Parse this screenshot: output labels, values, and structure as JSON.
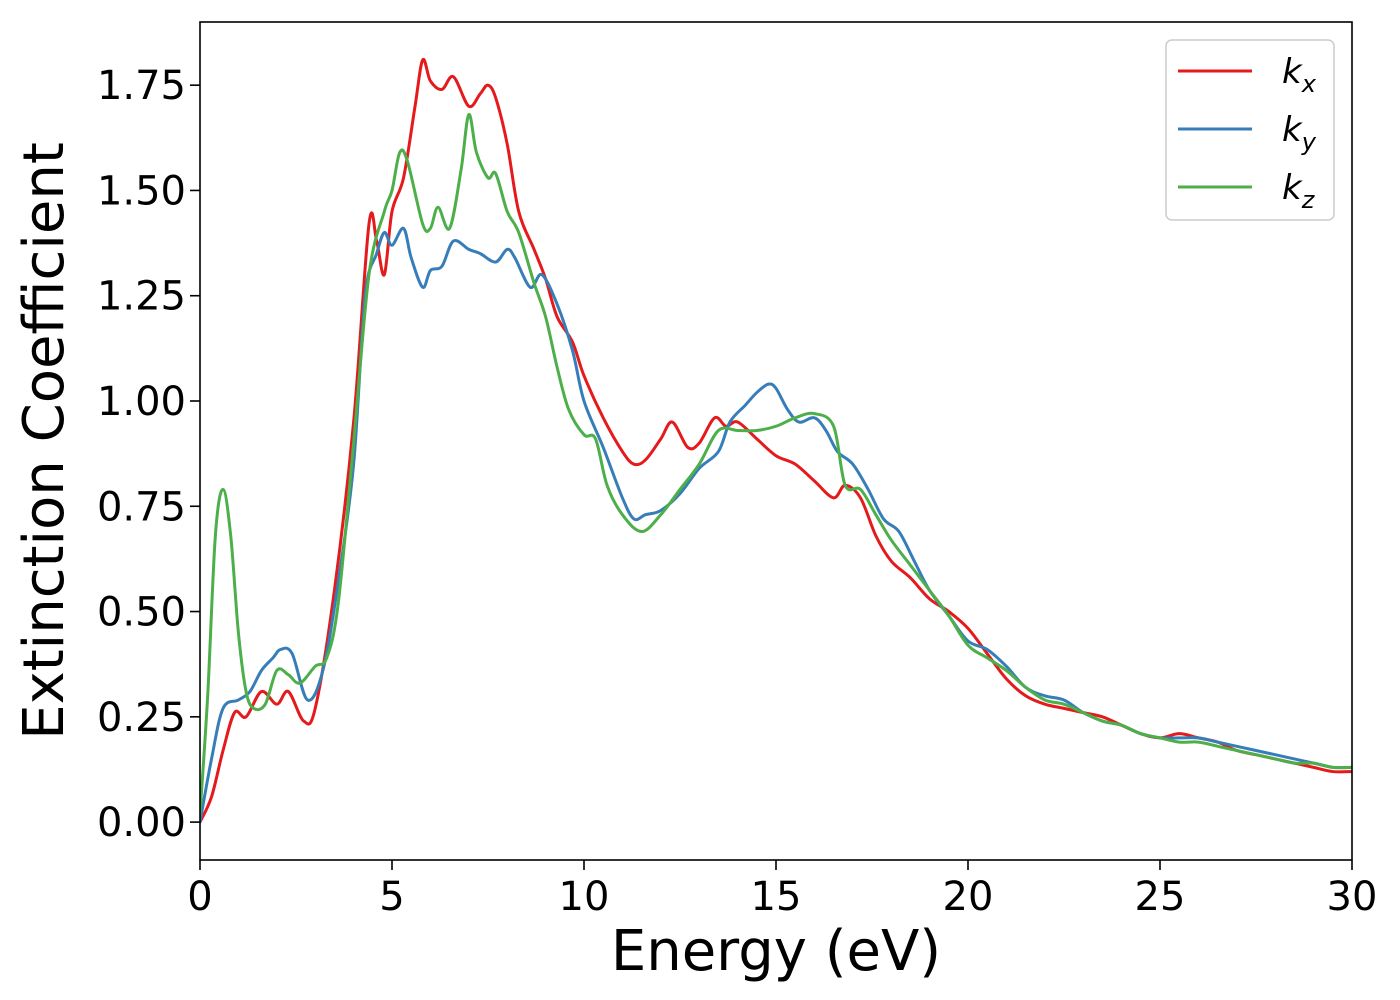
{
  "chart_data": {
    "type": "line",
    "xlabel": "Energy (eV)",
    "ylabel": "Extinction Coefficient",
    "xlim": [
      0,
      30
    ],
    "ylim": [
      -0.09,
      1.9
    ],
    "xticks": [
      0,
      5,
      10,
      15,
      20,
      25,
      30
    ],
    "xtick_labels": [
      "0",
      "5",
      "10",
      "15",
      "20",
      "25",
      "30"
    ],
    "yticks": [
      0,
      0.25,
      0.5,
      0.75,
      1.0,
      1.25,
      1.5,
      1.75
    ],
    "ytick_labels": [
      "0.00",
      "0.25",
      "0.50",
      "0.75",
      "1.00",
      "1.25",
      "1.50",
      "1.75"
    ],
    "grid": false,
    "legend_position": "top-right",
    "series": [
      {
        "name": "k",
        "subscript": "x",
        "color": "#e41a1c",
        "points": [
          [
            0,
            0
          ],
          [
            0.3,
            0.06
          ],
          [
            0.6,
            0.17
          ],
          [
            0.9,
            0.26
          ],
          [
            1.2,
            0.25
          ],
          [
            1.6,
            0.31
          ],
          [
            2.0,
            0.28
          ],
          [
            2.3,
            0.31
          ],
          [
            2.7,
            0.24
          ],
          [
            3.0,
            0.27
          ],
          [
            3.5,
            0.55
          ],
          [
            4.0,
            0.95
          ],
          [
            4.4,
            1.42
          ],
          [
            4.6,
            1.38
          ],
          [
            4.8,
            1.3
          ],
          [
            5.0,
            1.45
          ],
          [
            5.3,
            1.53
          ],
          [
            5.6,
            1.7
          ],
          [
            5.8,
            1.81
          ],
          [
            6.0,
            1.76
          ],
          [
            6.3,
            1.74
          ],
          [
            6.6,
            1.77
          ],
          [
            7.0,
            1.7
          ],
          [
            7.3,
            1.73
          ],
          [
            7.5,
            1.75
          ],
          [
            7.7,
            1.72
          ],
          [
            8.0,
            1.61
          ],
          [
            8.3,
            1.45
          ],
          [
            8.7,
            1.36
          ],
          [
            9.0,
            1.29
          ],
          [
            9.3,
            1.2
          ],
          [
            9.7,
            1.14
          ],
          [
            10.0,
            1.06
          ],
          [
            10.5,
            0.96
          ],
          [
            11.0,
            0.88
          ],
          [
            11.3,
            0.85
          ],
          [
            11.6,
            0.86
          ],
          [
            12.0,
            0.91
          ],
          [
            12.3,
            0.95
          ],
          [
            12.7,
            0.89
          ],
          [
            13.0,
            0.9
          ],
          [
            13.4,
            0.96
          ],
          [
            13.7,
            0.94
          ],
          [
            14.0,
            0.95
          ],
          [
            14.5,
            0.91
          ],
          [
            15.0,
            0.87
          ],
          [
            15.5,
            0.85
          ],
          [
            16.0,
            0.81
          ],
          [
            16.5,
            0.77
          ],
          [
            16.8,
            0.8
          ],
          [
            17.2,
            0.77
          ],
          [
            17.6,
            0.68
          ],
          [
            18.0,
            0.62
          ],
          [
            18.5,
            0.58
          ],
          [
            19.0,
            0.53
          ],
          [
            19.5,
            0.5
          ],
          [
            20.0,
            0.46
          ],
          [
            20.5,
            0.4
          ],
          [
            21.0,
            0.34
          ],
          [
            21.5,
            0.3
          ],
          [
            22.0,
            0.28
          ],
          [
            22.5,
            0.27
          ],
          [
            23.0,
            0.26
          ],
          [
            23.5,
            0.25
          ],
          [
            24.0,
            0.23
          ],
          [
            24.5,
            0.21
          ],
          [
            25.0,
            0.2
          ],
          [
            25.5,
            0.21
          ],
          [
            26.0,
            0.2
          ],
          [
            26.5,
            0.19
          ],
          [
            27.0,
            0.17
          ],
          [
            27.5,
            0.16
          ],
          [
            28.0,
            0.15
          ],
          [
            28.5,
            0.14
          ],
          [
            29.0,
            0.13
          ],
          [
            29.5,
            0.12
          ],
          [
            30.0,
            0.12
          ]
        ]
      },
      {
        "name": "k",
        "subscript": "y",
        "color": "#377eb8",
        "points": [
          [
            0,
            0
          ],
          [
            0.3,
            0.15
          ],
          [
            0.6,
            0.27
          ],
          [
            1.0,
            0.29
          ],
          [
            1.3,
            0.31
          ],
          [
            1.6,
            0.36
          ],
          [
            1.9,
            0.39
          ],
          [
            2.1,
            0.41
          ],
          [
            2.4,
            0.4
          ],
          [
            2.8,
            0.29
          ],
          [
            3.2,
            0.36
          ],
          [
            3.6,
            0.57
          ],
          [
            4.0,
            0.85
          ],
          [
            4.3,
            1.25
          ],
          [
            4.6,
            1.35
          ],
          [
            4.8,
            1.4
          ],
          [
            5.0,
            1.37
          ],
          [
            5.3,
            1.41
          ],
          [
            5.5,
            1.34
          ],
          [
            5.8,
            1.27
          ],
          [
            6.0,
            1.31
          ],
          [
            6.3,
            1.32
          ],
          [
            6.6,
            1.38
          ],
          [
            7.0,
            1.36
          ],
          [
            7.3,
            1.35
          ],
          [
            7.7,
            1.33
          ],
          [
            8.0,
            1.36
          ],
          [
            8.2,
            1.34
          ],
          [
            8.6,
            1.27
          ],
          [
            8.9,
            1.3
          ],
          [
            9.3,
            1.23
          ],
          [
            9.7,
            1.12
          ],
          [
            10.0,
            1.0
          ],
          [
            10.5,
            0.89
          ],
          [
            11.0,
            0.77
          ],
          [
            11.3,
            0.72
          ],
          [
            11.6,
            0.73
          ],
          [
            12.0,
            0.74
          ],
          [
            12.5,
            0.78
          ],
          [
            13.0,
            0.84
          ],
          [
            13.5,
            0.88
          ],
          [
            13.8,
            0.95
          ],
          [
            14.2,
            0.99
          ],
          [
            14.5,
            1.02
          ],
          [
            14.8,
            1.04
          ],
          [
            15.0,
            1.03
          ],
          [
            15.3,
            0.98
          ],
          [
            15.6,
            0.95
          ],
          [
            16.0,
            0.96
          ],
          [
            16.3,
            0.93
          ],
          [
            16.6,
            0.88
          ],
          [
            17.0,
            0.85
          ],
          [
            17.4,
            0.79
          ],
          [
            17.8,
            0.72
          ],
          [
            18.2,
            0.69
          ],
          [
            18.6,
            0.62
          ],
          [
            19.0,
            0.55
          ],
          [
            19.5,
            0.49
          ],
          [
            20.0,
            0.43
          ],
          [
            20.5,
            0.41
          ],
          [
            21.0,
            0.37
          ],
          [
            21.5,
            0.32
          ],
          [
            22.0,
            0.3
          ],
          [
            22.5,
            0.29
          ],
          [
            23.0,
            0.26
          ],
          [
            23.5,
            0.24
          ],
          [
            24.0,
            0.23
          ],
          [
            24.5,
            0.21
          ],
          [
            25.0,
            0.2
          ],
          [
            25.5,
            0.2
          ],
          [
            26.0,
            0.2
          ],
          [
            26.5,
            0.19
          ],
          [
            27.0,
            0.18
          ],
          [
            27.5,
            0.17
          ],
          [
            28.0,
            0.16
          ],
          [
            28.5,
            0.15
          ],
          [
            29.0,
            0.14
          ],
          [
            29.5,
            0.13
          ],
          [
            30.0,
            0.13
          ]
        ]
      },
      {
        "name": "k",
        "subscript": "z",
        "color": "#4daf4a",
        "points": [
          [
            0,
            0.02
          ],
          [
            0.2,
            0.3
          ],
          [
            0.4,
            0.68
          ],
          [
            0.6,
            0.79
          ],
          [
            0.8,
            0.68
          ],
          [
            1.0,
            0.45
          ],
          [
            1.2,
            0.31
          ],
          [
            1.4,
            0.27
          ],
          [
            1.7,
            0.28
          ],
          [
            2.0,
            0.36
          ],
          [
            2.3,
            0.35
          ],
          [
            2.6,
            0.33
          ],
          [
            3.0,
            0.37
          ],
          [
            3.3,
            0.39
          ],
          [
            3.6,
            0.52
          ],
          [
            4.0,
            0.9
          ],
          [
            4.4,
            1.3
          ],
          [
            4.8,
            1.45
          ],
          [
            5.0,
            1.5
          ],
          [
            5.2,
            1.59
          ],
          [
            5.4,
            1.57
          ],
          [
            5.8,
            1.42
          ],
          [
            6.0,
            1.41
          ],
          [
            6.2,
            1.46
          ],
          [
            6.5,
            1.41
          ],
          [
            6.8,
            1.55
          ],
          [
            7.0,
            1.68
          ],
          [
            7.2,
            1.59
          ],
          [
            7.5,
            1.53
          ],
          [
            7.7,
            1.54
          ],
          [
            8.0,
            1.45
          ],
          [
            8.3,
            1.4
          ],
          [
            8.7,
            1.28
          ],
          [
            9.0,
            1.2
          ],
          [
            9.3,
            1.08
          ],
          [
            9.6,
            0.98
          ],
          [
            10.0,
            0.92
          ],
          [
            10.3,
            0.91
          ],
          [
            10.6,
            0.8
          ],
          [
            11.0,
            0.73
          ],
          [
            11.5,
            0.69
          ],
          [
            12.0,
            0.73
          ],
          [
            12.5,
            0.79
          ],
          [
            13.0,
            0.85
          ],
          [
            13.5,
            0.93
          ],
          [
            14.0,
            0.93
          ],
          [
            14.5,
            0.93
          ],
          [
            15.0,
            0.94
          ],
          [
            15.5,
            0.96
          ],
          [
            16.0,
            0.97
          ],
          [
            16.5,
            0.94
          ],
          [
            16.8,
            0.8
          ],
          [
            17.2,
            0.79
          ],
          [
            17.6,
            0.73
          ],
          [
            18.0,
            0.67
          ],
          [
            18.5,
            0.61
          ],
          [
            19.0,
            0.55
          ],
          [
            19.5,
            0.49
          ],
          [
            20.0,
            0.42
          ],
          [
            20.5,
            0.39
          ],
          [
            21.0,
            0.36
          ],
          [
            21.5,
            0.32
          ],
          [
            22.0,
            0.29
          ],
          [
            22.5,
            0.28
          ],
          [
            23.0,
            0.26
          ],
          [
            23.5,
            0.24
          ],
          [
            24.0,
            0.23
          ],
          [
            24.5,
            0.21
          ],
          [
            25.0,
            0.2
          ],
          [
            25.5,
            0.19
          ],
          [
            26.0,
            0.19
          ],
          [
            26.5,
            0.18
          ],
          [
            27.0,
            0.17
          ],
          [
            27.5,
            0.16
          ],
          [
            28.0,
            0.15
          ],
          [
            28.5,
            0.14
          ],
          [
            29.0,
            0.14
          ],
          [
            29.5,
            0.13
          ],
          [
            30.0,
            0.13
          ]
        ]
      }
    ]
  }
}
